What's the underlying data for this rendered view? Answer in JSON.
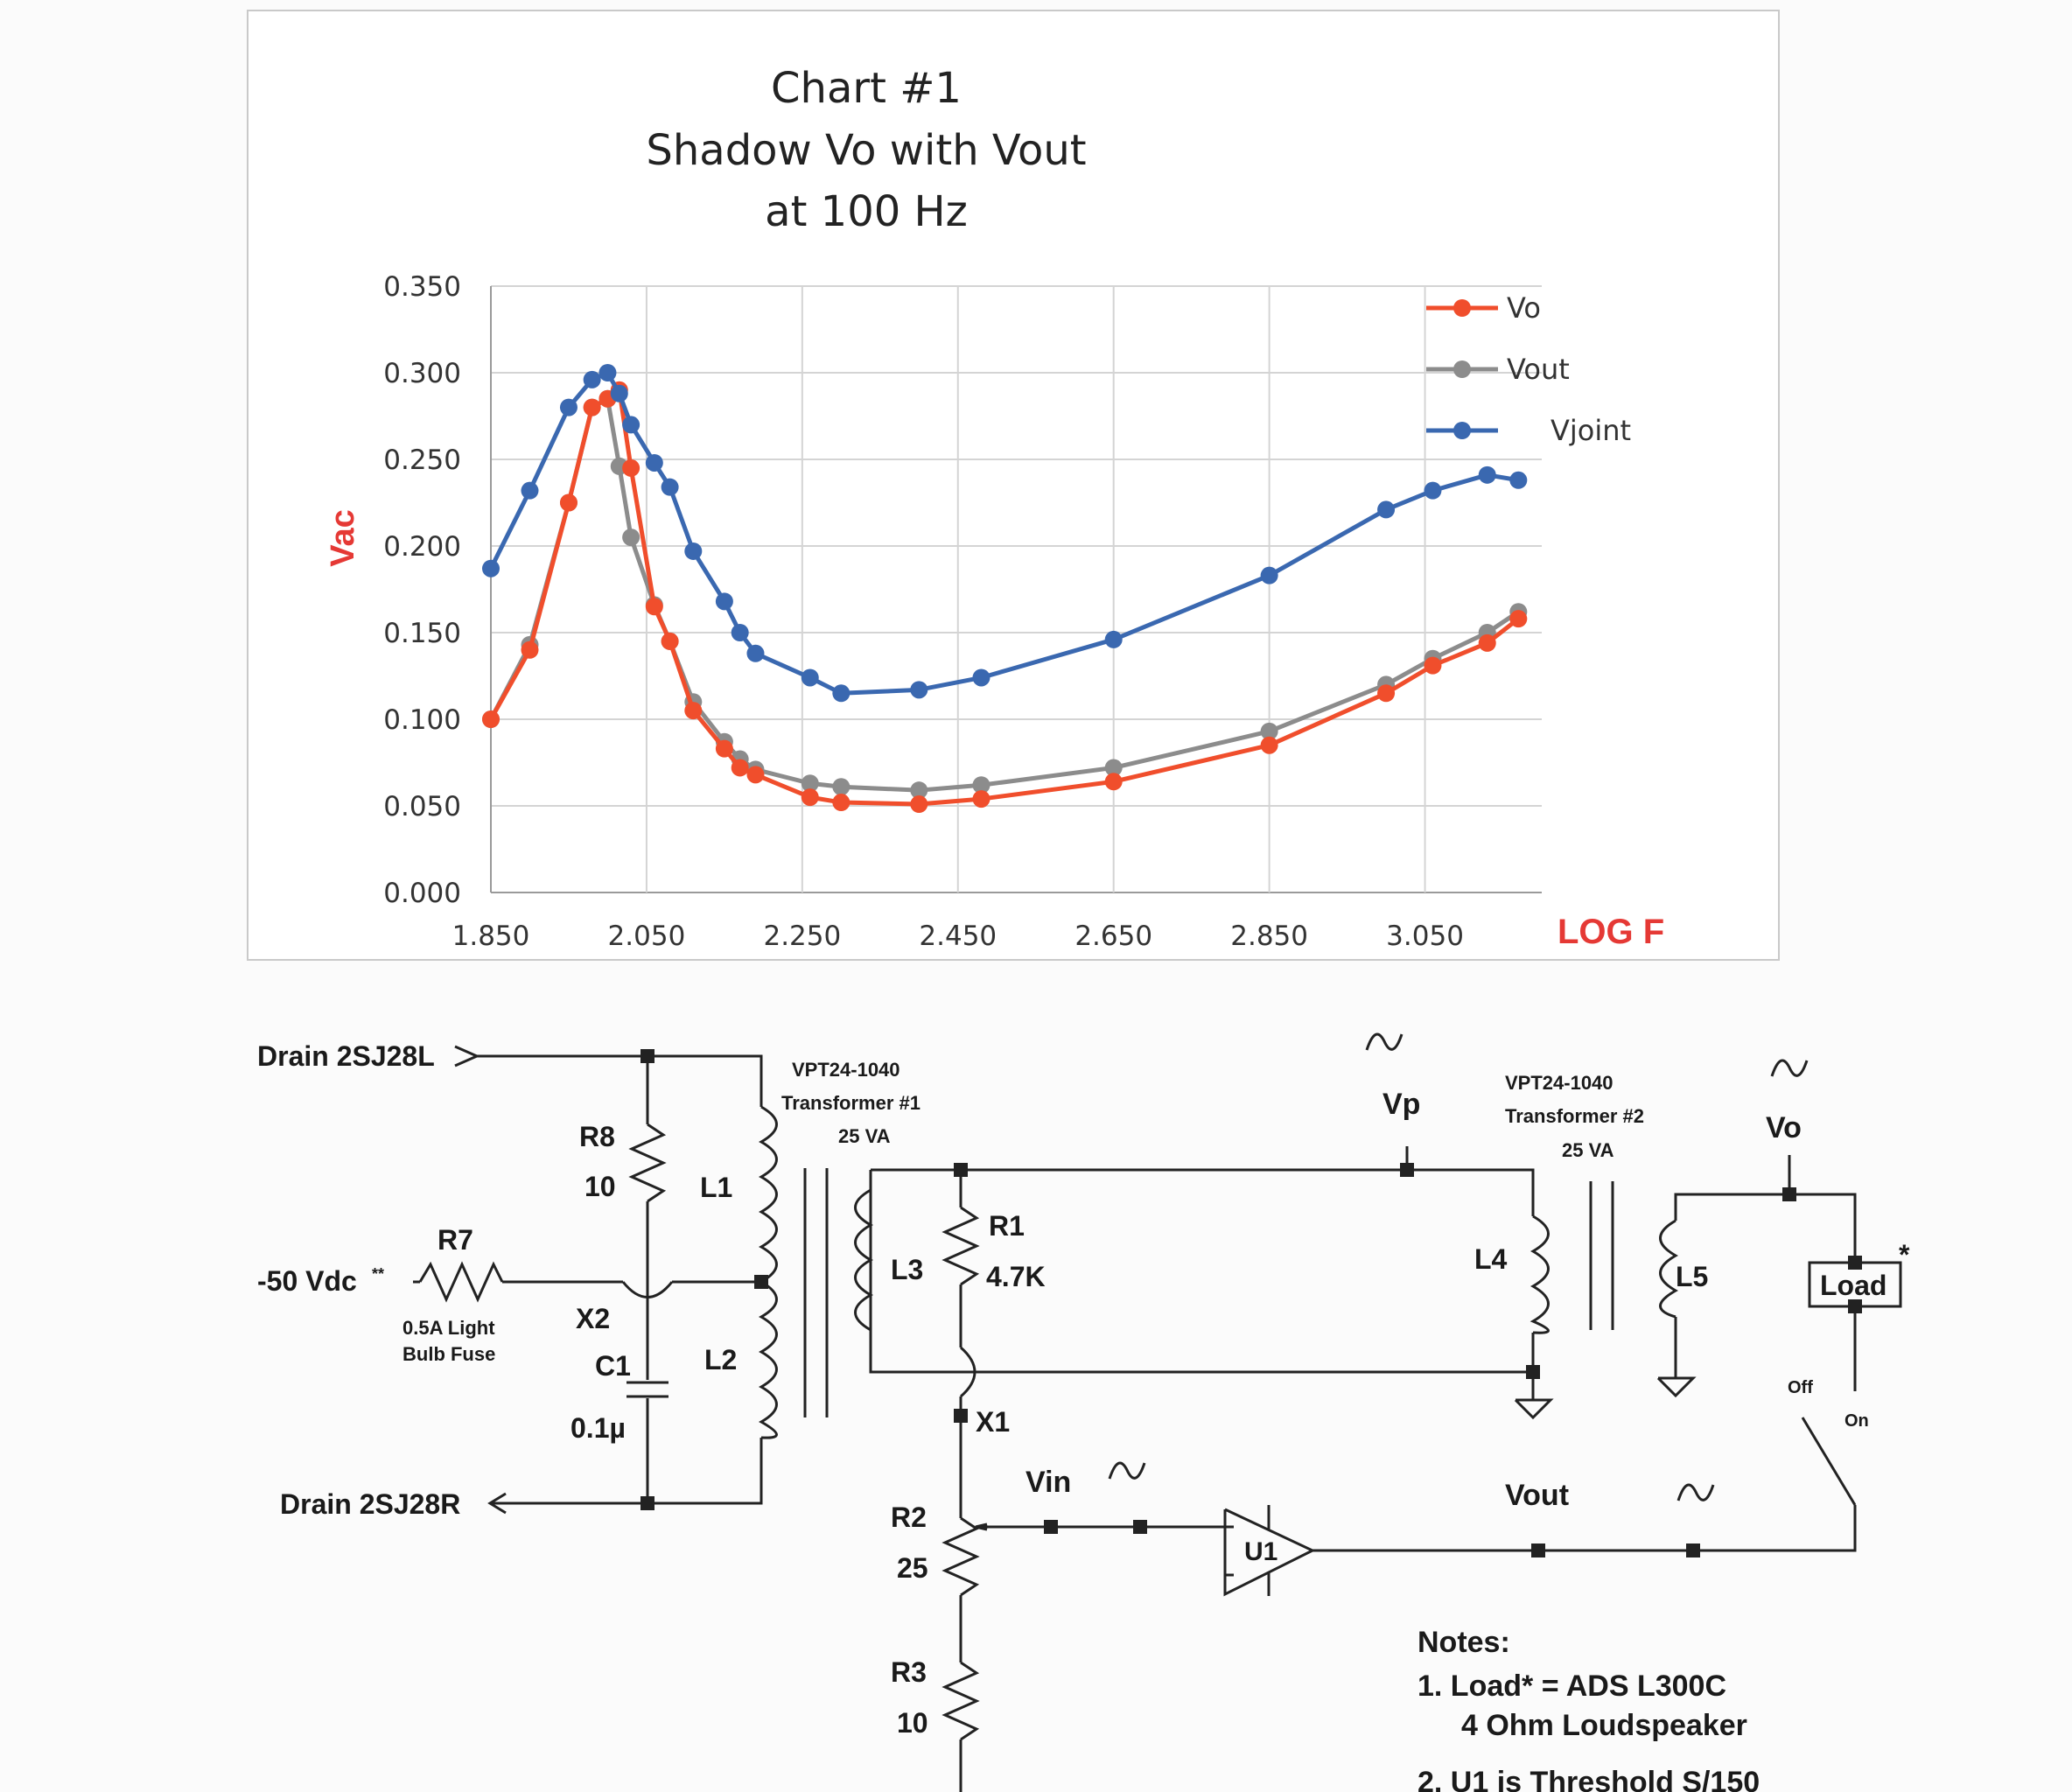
{
  "chart_data": {
    "type": "line",
    "title": [
      "Chart #1",
      "Shadow  Vo with Vout",
      "at 100 Hz"
    ],
    "xlabel": "LOG F",
    "ylabel": "Vac",
    "xlim": [
      1.85,
      3.2
    ],
    "ylim": [
      0,
      0.35
    ],
    "x_ticks": [
      "1.850",
      "2.050",
      "2.250",
      "2.450",
      "2.650",
      "2.850",
      "3.050"
    ],
    "y_ticks": [
      "0.000",
      "0.050",
      "0.100",
      "0.150",
      "0.200",
      "0.250",
      "0.300",
      "0.350"
    ],
    "grid": true,
    "legend_position": "top-right",
    "series": [
      {
        "name": "Vo",
        "color": "#f04e2c",
        "x": [
          1.85,
          1.9,
          1.95,
          1.98,
          2.0,
          2.015,
          2.03,
          2.06,
          2.08,
          2.11,
          2.15,
          2.17,
          2.19,
          2.26,
          2.3,
          2.4,
          2.48,
          2.65,
          2.85,
          3.0,
          3.06,
          3.13,
          3.17
        ],
        "y": [
          0.1,
          0.14,
          0.225,
          0.28,
          0.285,
          0.29,
          0.245,
          0.165,
          0.145,
          0.105,
          0.083,
          0.072,
          0.068,
          0.055,
          0.052,
          0.051,
          0.054,
          0.064,
          0.085,
          0.115,
          0.131,
          0.144,
          0.158
        ]
      },
      {
        "name": "Vout",
        "color": "#8c8c8c",
        "x": [
          1.85,
          1.9,
          1.95,
          1.98,
          2.0,
          2.015,
          2.03,
          2.06,
          2.08,
          2.11,
          2.15,
          2.17,
          2.19,
          2.26,
          2.3,
          2.4,
          2.48,
          2.65,
          2.85,
          3.0,
          3.06,
          3.13,
          3.17
        ],
        "y": [
          0.1,
          0.143,
          0.225,
          0.28,
          0.285,
          0.246,
          0.205,
          0.166,
          0.145,
          0.11,
          0.087,
          0.077,
          0.071,
          0.063,
          0.061,
          0.059,
          0.062,
          0.072,
          0.093,
          0.12,
          0.135,
          0.15,
          0.162
        ]
      },
      {
        "name": "Vjoint",
        "color": "#3a68b0",
        "x": [
          1.85,
          1.9,
          1.95,
          1.98,
          2.0,
          2.015,
          2.03,
          2.06,
          2.08,
          2.11,
          2.15,
          2.17,
          2.19,
          2.26,
          2.3,
          2.4,
          2.48,
          2.65,
          2.85,
          3.0,
          3.06,
          3.13,
          3.17
        ],
        "y": [
          0.187,
          0.232,
          0.28,
          0.296,
          0.3,
          0.288,
          0.27,
          0.248,
          0.234,
          0.197,
          0.168,
          0.15,
          0.138,
          0.124,
          0.115,
          0.117,
          0.124,
          0.146,
          0.183,
          0.221,
          0.232,
          0.241,
          0.238
        ]
      }
    ]
  },
  "schematic": {
    "drain_l": "Drain 2SJ28L",
    "drain_r": "Drain 2SJ28R",
    "supply": "-50 Vdc",
    "supply_mark": "**",
    "r7": "R7",
    "fuse_line1": "0.5A Light",
    "fuse_line2": "Bulb Fuse",
    "r8": "R8",
    "r8_val": "10",
    "x2": "X2",
    "c1": "C1",
    "c1_val": "0.1µ",
    "l1": "L1",
    "l2": "L2",
    "t1_line1": "VPT24-1040",
    "t1_line2": "Transformer #1",
    "t1_line3": "25 VA",
    "l3": "L3",
    "r1": "R1",
    "r1_val": "4.7K",
    "x1": "X1",
    "vp": "Vp",
    "t2_line1": "VPT24-1040",
    "t2_line2": "Transformer #2",
    "t2_line3": "25 VA",
    "l4": "L4",
    "l5": "L5",
    "vo": "Vo",
    "load": "Load",
    "load_mark": "*",
    "sw_off": "Off",
    "sw_on": "On",
    "r2": "R2",
    "r2_val": "25",
    "r3": "R3",
    "r3_val": "10",
    "vin": "Vin",
    "u1": "U1",
    "vout": "Vout",
    "notes_title": "Notes:",
    "note1_a": "1.  Load* = ADS L300C",
    "note1_b": "4 Ohm Loudspeaker",
    "note2": "2.  U1 is Threshold S/150"
  }
}
